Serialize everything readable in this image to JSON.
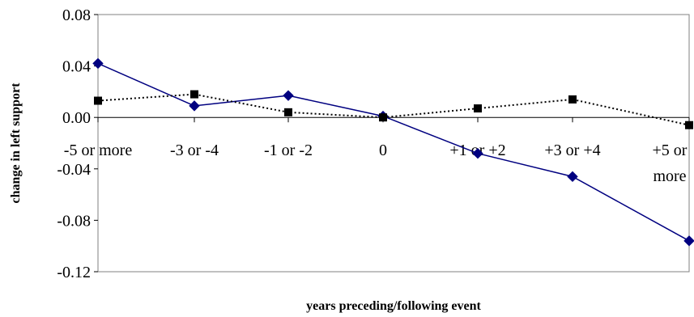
{
  "chart_data": {
    "type": "line",
    "categories": [
      "-5 or more",
      "-3 or -4",
      "-1 or -2",
      "0",
      "+1 or +2",
      "+3 or +4",
      "+5 or more"
    ],
    "category_label_lines": [
      [
        "-5 or more"
      ],
      [
        "-3 or -4"
      ],
      [
        "-1 or -2"
      ],
      [
        "0"
      ],
      [
        "+1 or +2"
      ],
      [
        "+3 or +4"
      ],
      [
        "+5 or",
        "more"
      ]
    ],
    "series": [
      {
        "values": [
          0.042,
          0.009,
          0.017,
          0.001,
          -0.028,
          -0.046,
          -0.096
        ],
        "color": "#000080",
        "line_style": "solid",
        "marker": "diamond"
      },
      {
        "values": [
          0.013,
          0.018,
          0.004,
          0.0,
          0.007,
          0.014,
          -0.006
        ],
        "color": "#000000",
        "line_style": "dotted",
        "marker": "square"
      }
    ],
    "yticks": [
      0.08,
      0.04,
      0.0,
      -0.04,
      -0.08,
      -0.12
    ],
    "ytick_labels": [
      "0.08",
      "0.04",
      "0.00",
      "-0.04",
      "-0.08",
      "-0.12"
    ],
    "ylim": [
      -0.12,
      0.08
    ],
    "xlabel": "years preceding/following event",
    "ylabel": "change in left support",
    "grid": false,
    "legend": "none"
  }
}
